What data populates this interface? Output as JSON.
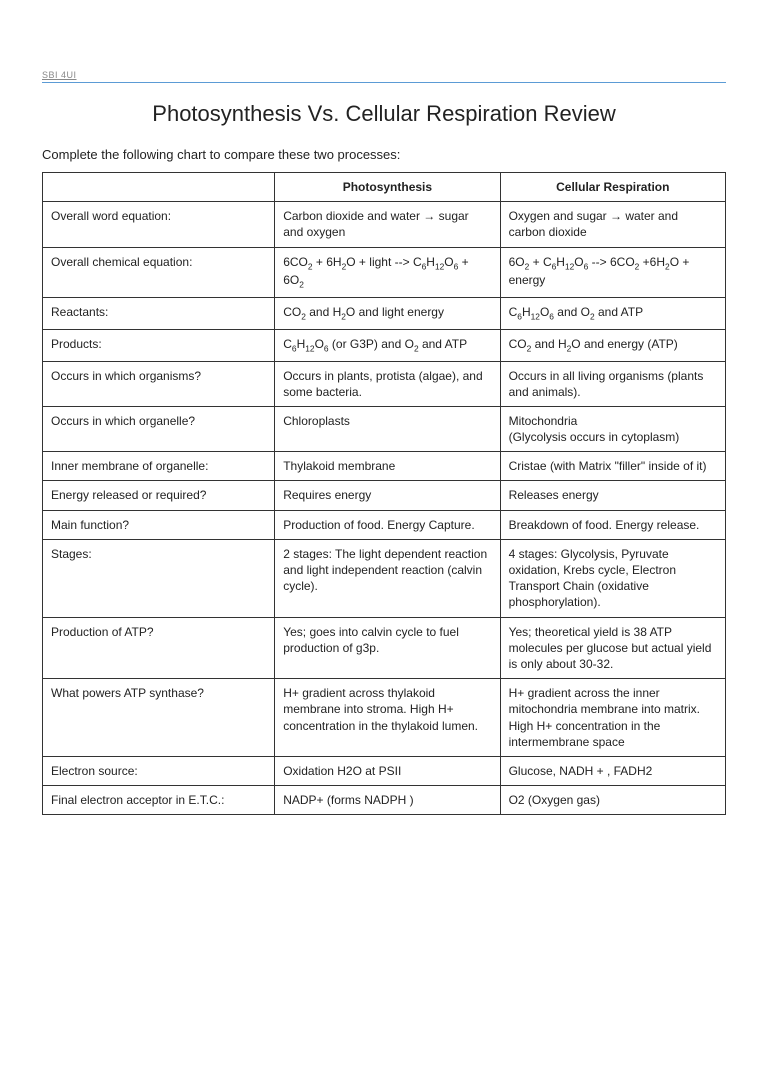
{
  "course_code": "SBI 4UI",
  "title": "Photosynthesis Vs. Cellular Respiration Review",
  "instruction": "Complete the following chart to compare these two processes:",
  "table": {
    "columns": [
      "",
      "Photosynthesis",
      "Cellular Respiration"
    ],
    "col_widths_pct": [
      34,
      33,
      33
    ],
    "border_color": "#333333",
    "header_font_weight": "bold",
    "font_size_pt": 12,
    "rows": [
      {
        "label": "Overall word equation:",
        "photo": "Carbon dioxide and water → sugar and oxygen",
        "resp": "Oxygen and sugar →  water and carbon dioxide"
      },
      {
        "label": "Overall chemical equation:",
        "photo_html": "6CO<sub>2</sub> + 6H<sub>2</sub>O + light --> C<sub>6</sub>H<sub>12</sub>O<sub>6</sub> + 6O<sub>2</sub>",
        "resp_html": "6O<sub>2</sub> + C<sub>6</sub>H<sub>12</sub>O<sub>6</sub> --> 6CO<sub>2</sub> +6H<sub>2</sub>O + energy"
      },
      {
        "label": "Reactants:",
        "photo_html": "CO<sub>2</sub> and H<sub>2</sub>O and light energy",
        "resp_html": "C<sub>6</sub>H<sub>12</sub>O<sub>6</sub> and O<sub>2</sub> and ATP"
      },
      {
        "label": "Products:",
        "photo_html": "C<sub>6</sub>H<sub>12</sub>O<sub>6</sub> (or G3P) and O<sub>2</sub> and ATP",
        "resp_html": "CO<sub>2</sub> and H<sub>2</sub>O and energy (ATP)"
      },
      {
        "label": "Occurs in which organisms?",
        "photo": "Occurs in plants, protista (algae), and some bacteria.",
        "resp": "Occurs in all living organisms (plants and animals).",
        "class": "med"
      },
      {
        "label": "Occurs in which organelle?",
        "photo": "Chloroplasts",
        "resp": "Mitochondria\n(Glycolysis  occurs in cytoplasm)"
      },
      {
        "label": "Inner membrane of organelle:",
        "photo": "Thylakoid membrane",
        "resp": "Cristae (with Matrix \"filler\" inside of it)"
      },
      {
        "label": "Energy released or required?",
        "photo": "Requires energy",
        "resp": "Releases energy"
      },
      {
        "label": "Main function?",
        "photo": "Production of food. Energy Capture.",
        "resp": "Breakdown of food. Energy release.",
        "class": "med"
      },
      {
        "label": "Stages:",
        "photo": "2 stages: The light dependent reaction and light independent reaction (calvin cycle).",
        "resp": "4 stages: Glycolysis, Pyruvate oxidation, Krebs cycle, Electron Transport Chain (oxidative phosphorylation).",
        "class": "tall"
      },
      {
        "label": "Production of ATP?",
        "photo": "Yes; goes into calvin cycle to fuel production of g3p.",
        "resp": "Yes; theoretical yield is 38 ATP molecules per glucose but actual yield is only about 30-32."
      },
      {
        "label": "What powers ATP synthase?",
        "photo": "H+ gradient across thylakoid membrane into stroma. High H+ concentration in the thylakoid lumen.",
        "resp": "H+ gradient across the inner mitochondria membrane into matrix. High H+ concentration in the intermembrane space",
        "class": "med"
      },
      {
        "label": "Electron source:",
        "photo": "Oxidation H2O at PSII",
        "resp": "Glucose, NADH + , FADH2"
      },
      {
        "label": "Final electron acceptor in E.T.C.:",
        "photo": "NADP+ (forms NADPH )",
        "resp": "O2 (Oxygen gas)"
      }
    ]
  }
}
